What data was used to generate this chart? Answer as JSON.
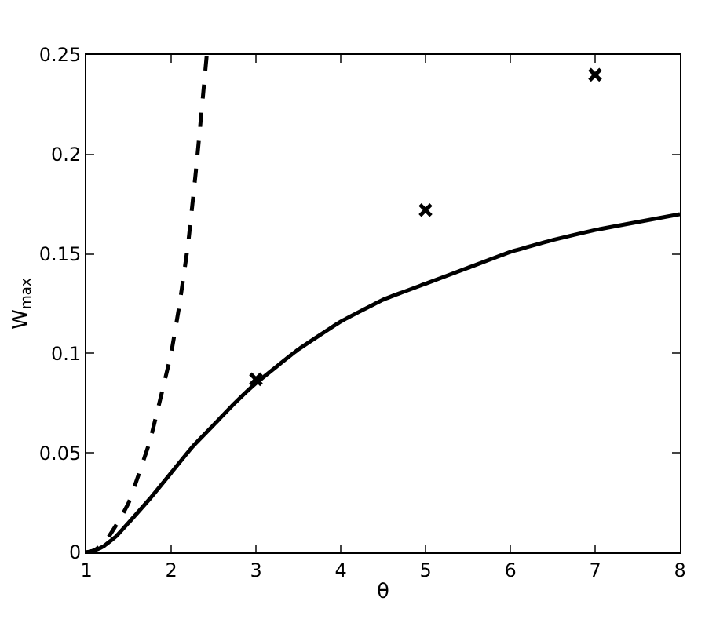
{
  "chart_data": {
    "type": "line",
    "xlabel": "θ",
    "ylabel": "W$_{max}$",
    "xlim": [
      1,
      8
    ],
    "ylim": [
      0,
      0.25
    ],
    "xticks": [
      1,
      2,
      3,
      4,
      5,
      6,
      7,
      8
    ],
    "yticks": [
      0,
      0.05,
      0.1,
      0.15,
      0.2,
      0.25
    ],
    "legend": false,
    "series": [
      {
        "line_style": "solid",
        "color": "#000000",
        "x": [
          1,
          1.1,
          1.2,
          1.35,
          1.5,
          1.75,
          2,
          2.25,
          2.5,
          2.75,
          3,
          3.5,
          4,
          4.5,
          5,
          5.5,
          6,
          6.5,
          7,
          7.5,
          8
        ],
        "values": [
          0,
          0.001,
          0.003,
          0.008,
          0.015,
          0.027,
          0.04,
          0.053,
          0.064,
          0.075,
          0.085,
          0.102,
          0.116,
          0.127,
          0.135,
          0.143,
          0.151,
          0.157,
          0.162,
          0.166,
          0.17
        ]
      },
      {
        "line_style": "dashed",
        "color": "#000000",
        "x": [
          1,
          1.1,
          1.25,
          1.4,
          1.5,
          1.6,
          1.75,
          1.9,
          2,
          2.1,
          2.2,
          2.3,
          2.42
        ],
        "values": [
          0,
          0.001,
          0.007,
          0.017,
          0.025,
          0.037,
          0.056,
          0.082,
          0.1,
          0.125,
          0.155,
          0.195,
          0.25
        ]
      },
      {
        "type": "scatter",
        "marker": "cross",
        "color": "#000000",
        "x": [
          3,
          5,
          7
        ],
        "values": [
          0.087,
          0.172,
          0.24
        ]
      }
    ]
  }
}
